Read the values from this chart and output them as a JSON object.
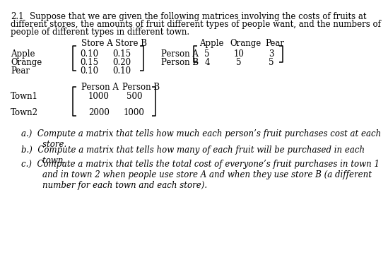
{
  "bg_color": "#ffffff",
  "font_size": 8.5,
  "font_family": "DejaVu Serif",
  "title_num": "2.1",
  "title_line1": "Suppose that we are given the following matrices involving the costs of fruits at",
  "title_line2": "different stores, the amounts of fruit different types of people want, and the numbers of",
  "title_line3": "people of different types in different town.",
  "qa": "a.)  Compute a matrix that tells how much each person’s fruit purchases cost at each\n        store.",
  "qb": "b.)  Compute a matrix that tells how many of each fruit will be purchased in each\n        town.",
  "qc": "c.)  Compute a matrix that tells the total cost of everyone’s fruit purchases in town 1\n        and in town 2 when people use store A and when they use store B (a different\n        number for each town and each store)."
}
